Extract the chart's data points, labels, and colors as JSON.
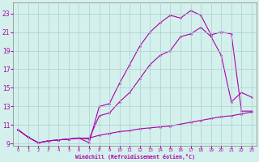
{
  "xlabel": "Windchill (Refroidissement éolien,°C)",
  "bg_color": "#d4f0ec",
  "grid_color": "#aacece",
  "line_color": "#aa00aa",
  "xlim": [
    -0.5,
    23.5
  ],
  "ylim": [
    8.8,
    24.2
  ],
  "xticks": [
    0,
    1,
    2,
    3,
    4,
    5,
    6,
    7,
    8,
    9,
    10,
    11,
    12,
    13,
    14,
    15,
    16,
    17,
    18,
    19,
    20,
    21,
    22,
    23
  ],
  "yticks": [
    9,
    11,
    13,
    15,
    17,
    19,
    21,
    23
  ],
  "line1_x": [
    0,
    1,
    2,
    3,
    4,
    5,
    6,
    7,
    8,
    9,
    10,
    11,
    12,
    13,
    14,
    15,
    16,
    17,
    18,
    19,
    20,
    21,
    22,
    23
  ],
  "line1_y": [
    10.5,
    9.7,
    9.1,
    9.3,
    9.4,
    9.5,
    9.6,
    9.6,
    9.9,
    10.1,
    10.3,
    10.4,
    10.6,
    10.7,
    10.8,
    10.9,
    11.1,
    11.3,
    11.5,
    11.7,
    11.9,
    12.0,
    12.2,
    12.4
  ],
  "line2_x": [
    0,
    1,
    2,
    3,
    4,
    5,
    6,
    7,
    8,
    9,
    10,
    11,
    12,
    13,
    14,
    15,
    16,
    17,
    18,
    19,
    20,
    21,
    22,
    23
  ],
  "line2_y": [
    10.5,
    9.7,
    9.1,
    9.3,
    9.4,
    9.5,
    9.6,
    9.5,
    12.0,
    12.3,
    13.5,
    14.5,
    16.0,
    17.5,
    18.5,
    19.0,
    20.5,
    20.8,
    21.5,
    20.5,
    18.5,
    13.5,
    14.5,
    14.0
  ],
  "line3_x": [
    0,
    1,
    2,
    3,
    4,
    5,
    6,
    7,
    8,
    9,
    10,
    11,
    12,
    13,
    14,
    15,
    16,
    17,
    18,
    19,
    20,
    21,
    22,
    23
  ],
  "line3_y": [
    10.5,
    9.7,
    9.1,
    9.3,
    9.4,
    9.5,
    9.6,
    9.1,
    13.0,
    13.3,
    15.5,
    17.5,
    19.5,
    21.0,
    22.0,
    22.8,
    22.5,
    23.3,
    22.8,
    20.7,
    21.0,
    20.8,
    12.5,
    12.5
  ]
}
